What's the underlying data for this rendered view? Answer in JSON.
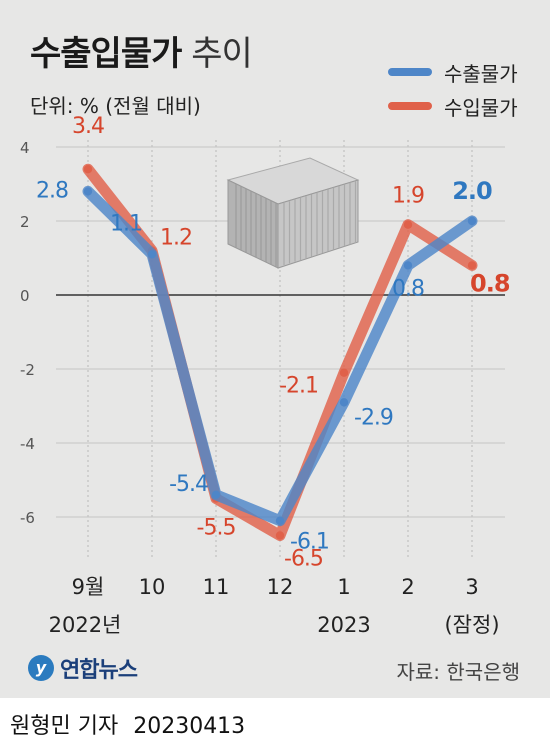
{
  "title_bold": "수출입물가",
  "title_light": "추이",
  "unit": "단위: % (전월 대비)",
  "legend": [
    {
      "name": "수출물가",
      "color": "#4e86c8"
    },
    {
      "name": "수입물가",
      "color": "#e0614a"
    }
  ],
  "chart_data": {
    "type": "line",
    "x": [
      "9월",
      "10",
      "11",
      "12",
      "1",
      "2",
      "3"
    ],
    "x_sub": [
      "2022년",
      "",
      "",
      "",
      "2023",
      "",
      "(잠정)"
    ],
    "ylim": [
      -7,
      5
    ],
    "yticks": [
      "4",
      "2",
      "0",
      "-2",
      "-4",
      "-6"
    ],
    "series": [
      {
        "name": "수출물가",
        "color": "#4e86c8",
        "label_color": "#2f78c0",
        "values": [
          2.8,
          1.1,
          -5.4,
          -6.1,
          -2.9,
          0.8,
          2.0
        ],
        "labels": [
          "2.8",
          "1.1",
          "-5.4",
          "-6.1",
          "-2.9",
          "0.8",
          "2.0"
        ]
      },
      {
        "name": "수입물가",
        "color": "#e0614a",
        "label_color": "#d6452c",
        "values": [
          3.4,
          1.2,
          -5.5,
          -6.5,
          -2.1,
          1.9,
          0.8
        ],
        "labels": [
          "3.4",
          "1.2",
          "-5.5",
          "-6.5",
          "-2.1",
          "1.9",
          "0.8"
        ]
      }
    ]
  },
  "logo": "연합뉴스",
  "logo_mark": "y",
  "source": "자료: 한국은행",
  "byline": "원형민 기자",
  "date": "20230413"
}
